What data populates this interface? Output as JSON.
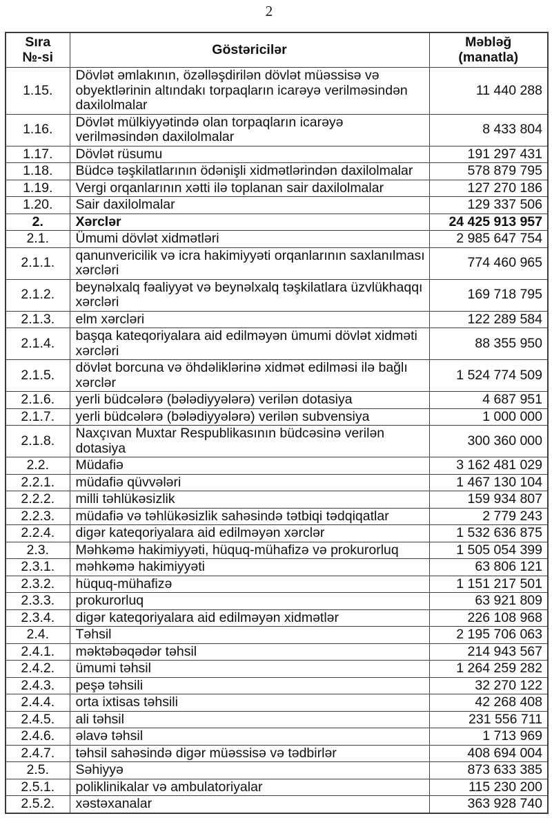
{
  "page": {
    "number": "2"
  },
  "table": {
    "headers": {
      "no": "Sıra\n№-si",
      "indicator": "Göstəricilər",
      "amount": "Məbləğ\n(manatla)"
    },
    "rows": [
      {
        "no": "1.15.",
        "label": "Dövlət əmlakının, özəlləşdirilən dövlət müəssisə və\nobyektlərinin altındakı torpaqların icarəyə verilməsindən\ndaxilolmalar",
        "amount": "11 440 288",
        "bold": false
      },
      {
        "no": "1.16.",
        "label": "Dövlət mülkiyyətində olan torpaqların icarəyə\nverilməsindən daxilolmalar",
        "amount": "8 433 804",
        "bold": false
      },
      {
        "no": "1.17.",
        "label": "Dövlət rüsumu",
        "amount": "191 297 431",
        "bold": false
      },
      {
        "no": "1.18.",
        "label": "Büdcə təşkilatlarının ödənişli xidmətlərindən daxilolmalar",
        "amount": "578 879 795",
        "bold": false
      },
      {
        "no": "1.19.",
        "label": "Vergi orqanlarının xətti ilə toplanan sair daxilolmalar",
        "amount": "127 270 186",
        "bold": false
      },
      {
        "no": "1.20.",
        "label": "Sair daxilolmalar",
        "amount": "129 337 506",
        "bold": false
      },
      {
        "no": "2.",
        "label": "Xərclər",
        "amount": "24 425 913 957",
        "bold": true
      },
      {
        "no": "2.1.",
        "label": "Ümumi dövlət xidmətləri",
        "amount": "2 985 647 754",
        "bold": false
      },
      {
        "no": "2.1.1.",
        "label": "qanunvericilik və icra hakimiyyəti orqanlarının saxlanılması\nxərcləri",
        "amount": "774 460 965",
        "bold": false
      },
      {
        "no": "2.1.2.",
        "label": "beynəlxalq fəaliyyət və beynəlxalq təşkilatlara üzvlükhaqqı\nxərcləri",
        "amount": "169 718 795",
        "bold": false
      },
      {
        "no": "2.1.3.",
        "label": "elm xərcləri",
        "amount": "122 289 584",
        "bold": false
      },
      {
        "no": "2.1.4.",
        "label": "başqa kateqoriyalara aid edilməyən ümumi dövlət xidməti\nxərcləri",
        "amount": "88 355 950",
        "bold": false
      },
      {
        "no": "2.1.5.",
        "label": "dövlət borcuna və öhdəliklərinə xidmət edilməsi ilə bağlı\nxərclər",
        "amount": "1 524 774 509",
        "bold": false
      },
      {
        "no": "2.1.6.",
        "label": "yerli büdcələrə (bələdiyyələrə) verilən dotasiya",
        "amount": "4 687 951",
        "bold": false
      },
      {
        "no": "2.1.7.",
        "label": "yerli büdcələrə (bələdiyyələrə) verilən subvensiya",
        "amount": "1 000 000",
        "bold": false
      },
      {
        "no": "2.1.8.",
        "label": "Naxçıvan Muxtar Respublikasının büdcəsinə verilən\ndotasiya",
        "amount": "300 360 000",
        "bold": false
      },
      {
        "no": "2.2.",
        "label": "Müdafiə",
        "amount": "3 162 481 029",
        "bold": false
      },
      {
        "no": "2.2.1.",
        "label": "müdafiə qüvvələri",
        "amount": "1 467 130 104",
        "bold": false
      },
      {
        "no": "2.2.2.",
        "label": "milli təhlükəsizlik",
        "amount": "159 934 807",
        "bold": false
      },
      {
        "no": "2.2.3.",
        "label": "müdafiə və təhlükəsizlik sahəsində tətbiqi tədqiqatlar",
        "amount": "2 779 243",
        "bold": false
      },
      {
        "no": "2.2.4.",
        "label": "digər kateqoriyalara aid edilməyən xərclər",
        "amount": "1 532 636 875",
        "bold": false
      },
      {
        "no": "2.3.",
        "label": "Məhkəmə hakimiyyəti, hüquq-mühafizə və prokurorluq",
        "amount": "1 505 054 399",
        "bold": false
      },
      {
        "no": "2.3.1.",
        "label": "məhkəmə hakimiyyəti",
        "amount": "63 806 121",
        "bold": false
      },
      {
        "no": "2.3.2.",
        "label": "hüquq-mühafizə",
        "amount": "1 151 217 501",
        "bold": false
      },
      {
        "no": "2.3.3.",
        "label": "prokurorluq",
        "amount": "63 921 809",
        "bold": false
      },
      {
        "no": "2.3.4.",
        "label": "digər kateqoriyalara aid edilməyən xidmətlər",
        "amount": "226 108 968",
        "bold": false
      },
      {
        "no": "2.4.",
        "label": "Təhsil",
        "amount": "2 195 706 063",
        "bold": false
      },
      {
        "no": "2.4.1.",
        "label": "məktəbəqədər təhsil",
        "amount": "214 943 567",
        "bold": false
      },
      {
        "no": "2.4.2.",
        "label": "ümumi təhsil",
        "amount": "1 264 259 282",
        "bold": false
      },
      {
        "no": "2.4.3.",
        "label": "peşə təhsili",
        "amount": "32 270 122",
        "bold": false
      },
      {
        "no": "2.4.4.",
        "label": "orta ixtisas təhsili",
        "amount": "42 268 408",
        "bold": false
      },
      {
        "no": "2.4.5.",
        "label": "ali təhsil",
        "amount": "231 556 711",
        "bold": false
      },
      {
        "no": "2.4.6.",
        "label": "əlavə təhsil",
        "amount": "1 713 969",
        "bold": false
      },
      {
        "no": "2.4.7.",
        "label": "təhsil sahəsində digər müəssisə və tədbirlər",
        "amount": "408 694 004",
        "bold": false
      },
      {
        "no": "2.5.",
        "label": "Səhiyyə",
        "amount": "873 633 385",
        "bold": false
      },
      {
        "no": "2.5.1.",
        "label": "poliklinikalar və ambulatoriyalar",
        "amount": "115 230 200",
        "bold": false
      },
      {
        "no": "2.5.2.",
        "label": "xəstəxanalar",
        "amount": "363 928 740",
        "bold": false
      }
    ]
  }
}
